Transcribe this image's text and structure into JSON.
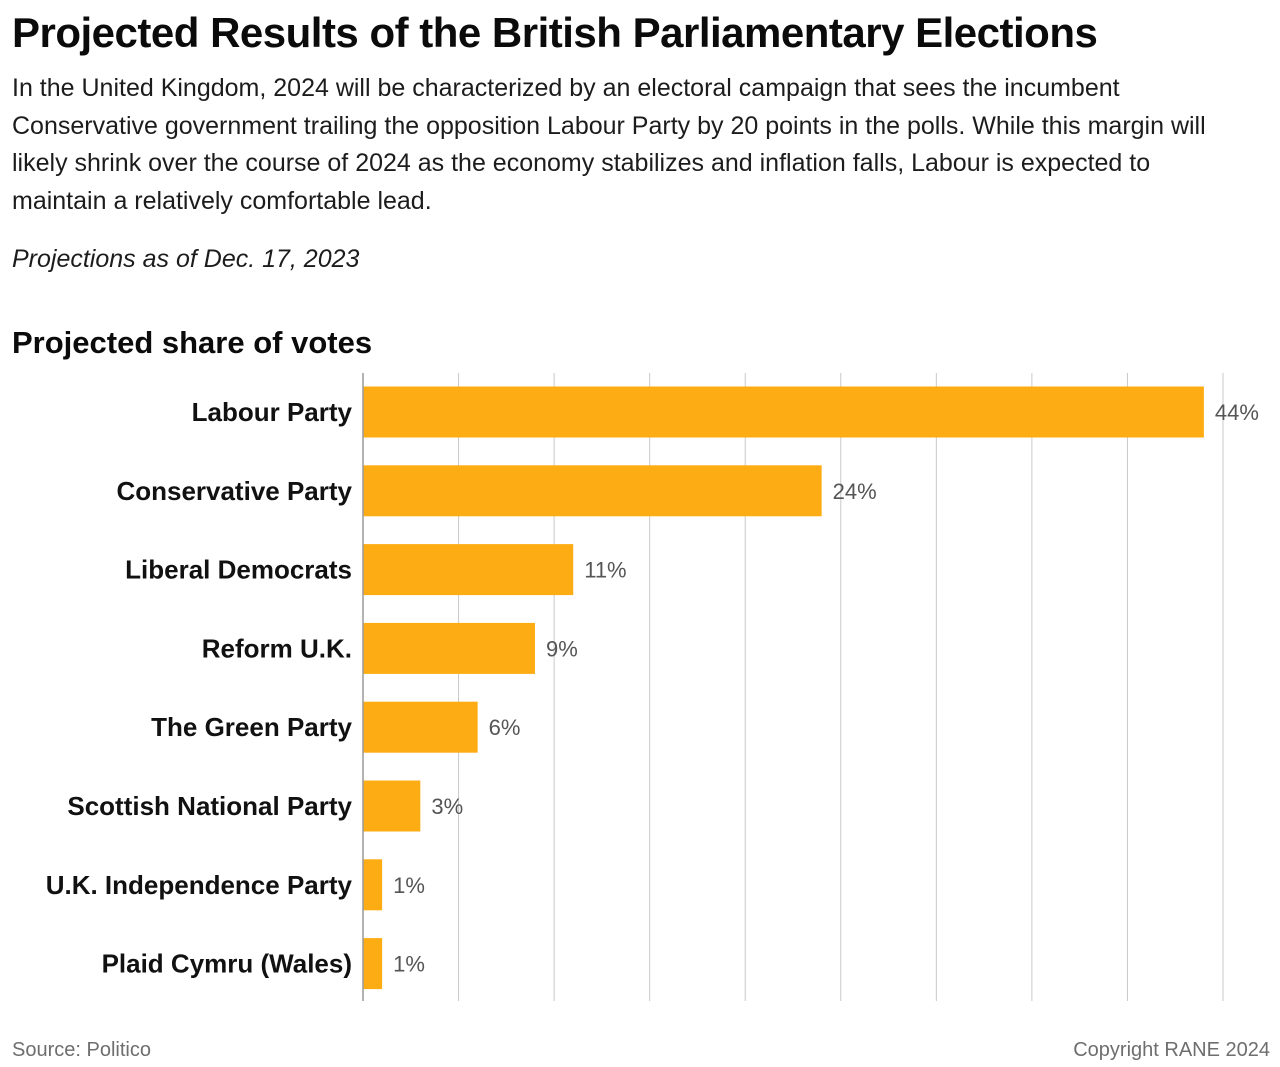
{
  "header": {
    "title": "Projected Results of the British Parliamentary Elections",
    "description": "In the United Kingdom, 2024 will be characterized by an electoral campaign that sees the incumbent Conservative government trailing the opposition Labour Party by 20 points in the polls. While this margin will likely shrink over the course of 2024 as the economy stabilizes and inflation falls, Labour is expected to maintain a relatively comfortable lead.",
    "dateline": "Projections as of Dec. 17, 2023"
  },
  "chart_data": {
    "type": "bar",
    "orientation": "horizontal",
    "title": "Projected share of votes",
    "xlabel": "",
    "ylabel": "",
    "categories": [
      "Labour Party",
      "Conservative Party",
      "Liberal Democrats",
      "Reform U.K.",
      "The Green Party",
      "Scottish National Party",
      "U.K. Independence Party",
      "Plaid Cymru (Wales)"
    ],
    "values": [
      44,
      24,
      11,
      9,
      6,
      3,
      1,
      1
    ],
    "value_labels": [
      "44%",
      "24%",
      "11%",
      "9%",
      "6%",
      "3%",
      "1%",
      "1%"
    ],
    "xlim": [
      0,
      45
    ],
    "grid": true,
    "legend": "none",
    "bar_color": "#fdad13"
  },
  "footer": {
    "source": "Source: Politico",
    "copyright": "Copyright RANE 2024"
  }
}
